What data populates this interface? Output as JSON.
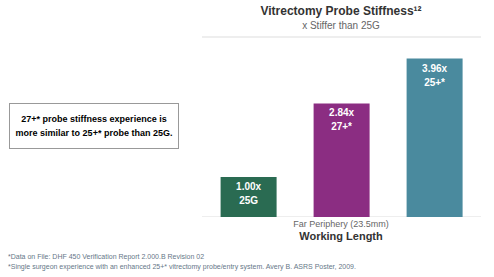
{
  "chart_data": {
    "type": "bar",
    "title": "Vitrectomy Probe Stiffness¹²",
    "subtitle": "x Stiffer than 25G",
    "x_label": [
      "Far Periphery (23.5mm)",
      "Working Length"
    ],
    "annotation": [
      "27+* probe stiffness experience is",
      "more similar to 25+* probe than 25G."
    ],
    "footnotes": [
      "*Data on File: DHF 450 Verification Report 2.000.B Revision 02",
      "*Single surgeon experience with an enhanced 25+* vitrectomy probe/entry system. Avery B. ASRS Poster, 2009."
    ],
    "categories": [
      "25G",
      "27+*",
      "25+*"
    ],
    "values": [
      1.0,
      2.84,
      3.96
    ],
    "value_labels": [
      "1.00x",
      "2.84x",
      "3.96x"
    ],
    "colors": [
      "#2a6b52",
      "#8b2d82",
      "#4a8a9e"
    ],
    "ylim": [
      0,
      4.5
    ],
    "yticks": [
      0,
      0.5,
      1,
      1.5,
      2,
      2.5,
      3,
      3.5,
      4,
      4.5
    ],
    "grid": true,
    "data_labels": true,
    "tick_labels": false
  }
}
